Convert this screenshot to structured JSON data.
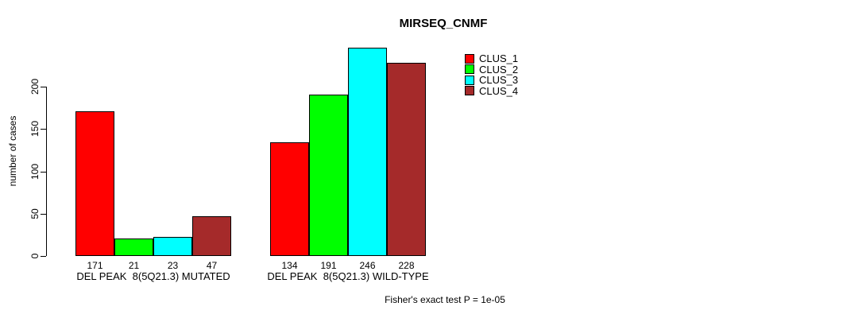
{
  "chart_data": {
    "type": "bar",
    "title": "MIRSEQ_CNMF",
    "ylabel": "number of cases",
    "xlabel": "",
    "ylim": [
      0,
      246
    ],
    "yticks": [
      0,
      50,
      100,
      150,
      200
    ],
    "grid": false,
    "legend_position": "right",
    "bar_border_color": "#000000",
    "categories": [
      "DEL PEAK  8(5Q21.3) MUTATED",
      "DEL PEAK  8(5Q21.3) WILD-TYPE"
    ],
    "series": [
      {
        "name": "CLUS_1",
        "color": "#FF0000",
        "values": [
          171,
          134
        ]
      },
      {
        "name": "CLUS_2",
        "color": "#00FF00",
        "values": [
          21,
          191
        ]
      },
      {
        "name": "CLUS_3",
        "color": "#00FFFF",
        "values": [
          23,
          246
        ]
      },
      {
        "name": "CLUS_4",
        "color": "#A52A2A",
        "values": [
          47,
          228
        ]
      }
    ],
    "value_labels": {
      "DEL PEAK  8(5Q21.3) MUTATED": [
        171,
        21,
        23,
        47
      ],
      "DEL PEAK  8(5Q21.3) WILD-TYPE": [
        134,
        191,
        246,
        228
      ]
    },
    "footnote": "Fisher's exact test P = 1e-05"
  }
}
